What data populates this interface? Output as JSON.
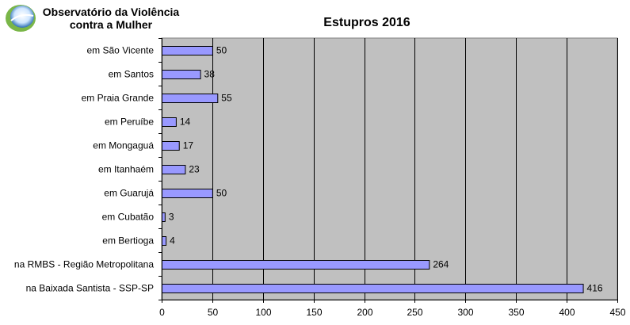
{
  "header": {
    "org_name_line1": "Observatório da Violência",
    "org_name_line2": "contra a Mulher"
  },
  "colors": {
    "plot_background": "#c0c0c0",
    "bar_fill": "#9999ff",
    "bar_stroke": "#000000",
    "gridline": "#000000",
    "logo_outer": "#7ab648",
    "logo_inner": "#2a6db5"
  },
  "chart_data": {
    "type": "bar",
    "orientation": "horizontal",
    "title": "Estupros 2016",
    "categories": [
      "em São Vicente",
      "em Santos",
      "em Praia Grande",
      "em Peruíbe",
      "em Mongaguá",
      "em Itanhaém",
      "em Guarujá",
      "em Cubatão",
      "em Bertioga",
      "na RMBS - Região Metropolitana",
      "na Baixada Santista - SSP-SP"
    ],
    "values": [
      50,
      38,
      55,
      14,
      17,
      23,
      50,
      3,
      4,
      264,
      416
    ],
    "xlim": [
      0,
      450
    ],
    "xticks": [
      0,
      50,
      100,
      150,
      200,
      250,
      300,
      350,
      400,
      450
    ],
    "grid": "vertical",
    "legend": "none",
    "data_labels": true
  }
}
